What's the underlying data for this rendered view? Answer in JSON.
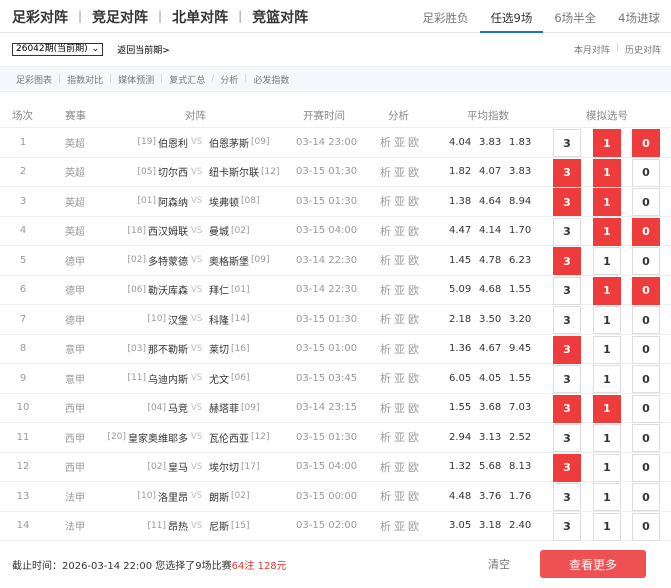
{
  "nav": {
    "brand_tabs": [
      "足彩对阵",
      "竞足对阵",
      "北单对阵",
      "竞篮对阵"
    ],
    "sub_tabs": [
      "足彩胜负",
      "任选9场",
      "6场半全",
      "4场进球"
    ],
    "active_sub_tab": "任选9场"
  },
  "toolbar": {
    "issue_select": "26042期(当前期)",
    "back_link": "返回当前期>",
    "month_link": "本月对阵",
    "history_link": "历史对阵"
  },
  "subnav": [
    "足彩图表",
    "指数对比",
    "媒体预测",
    "复式汇总",
    "分析",
    "必发指数"
  ],
  "table": {
    "headers": {
      "no": "场次",
      "league": "赛事",
      "match": "对阵",
      "time": "开赛时间",
      "analysis": "分析",
      "odds": "平均指数",
      "picks": "模拟选号"
    },
    "vs": "VS",
    "analysis_links": [
      "析",
      "亚",
      "欧"
    ],
    "pick_labels": [
      "3",
      "1",
      "0"
    ],
    "rows": [
      {
        "no": "1",
        "league": "英超",
        "home_rank": "[19]",
        "home": "伯恩利",
        "away": "伯恩茅斯",
        "away_rank": "[09]",
        "time": "03-14 23:00",
        "odds": [
          "4.04",
          "3.83",
          "1.83"
        ],
        "picks": [
          false,
          true,
          true
        ]
      },
      {
        "no": "2",
        "league": "英超",
        "home_rank": "[05]",
        "home": "切尔西",
        "away": "纽卡斯尔联",
        "away_rank": "[12]",
        "time": "03-15 01:30",
        "odds": [
          "1.82",
          "4.07",
          "3.83"
        ],
        "picks": [
          true,
          true,
          false
        ]
      },
      {
        "no": "3",
        "league": "英超",
        "home_rank": "[01]",
        "home": "阿森纳",
        "away": "埃弗顿",
        "away_rank": "[08]",
        "time": "03-15 01:30",
        "odds": [
          "1.38",
          "4.64",
          "8.94"
        ],
        "picks": [
          true,
          true,
          false
        ]
      },
      {
        "no": "4",
        "league": "英超",
        "home_rank": "[18]",
        "home": "西汉姆联",
        "away": "曼城",
        "away_rank": "[02]",
        "time": "03-15 04:00",
        "odds": [
          "4.47",
          "4.14",
          "1.70"
        ],
        "picks": [
          false,
          true,
          true
        ]
      },
      {
        "no": "5",
        "league": "德甲",
        "home_rank": "[02]",
        "home": "多特蒙德",
        "away": "奥格斯堡",
        "away_rank": "[09]",
        "time": "03-14 22:30",
        "odds": [
          "1.45",
          "4.78",
          "6.23"
        ],
        "picks": [
          true,
          false,
          false
        ]
      },
      {
        "no": "6",
        "league": "德甲",
        "home_rank": "[06]",
        "home": "勒沃库森",
        "away": "拜仁",
        "away_rank": "[01]",
        "time": "03-14 22:30",
        "odds": [
          "5.09",
          "4.68",
          "1.55"
        ],
        "picks": [
          false,
          true,
          true
        ]
      },
      {
        "no": "7",
        "league": "德甲",
        "home_rank": "[10]",
        "home": "汉堡",
        "away": "科隆",
        "away_rank": "[14]",
        "time": "03-15 01:30",
        "odds": [
          "2.18",
          "3.50",
          "3.20"
        ],
        "picks": [
          false,
          false,
          false
        ]
      },
      {
        "no": "8",
        "league": "意甲",
        "home_rank": "[03]",
        "home": "那不勒斯",
        "away": "莱切",
        "away_rank": "[16]",
        "time": "03-15 01:00",
        "odds": [
          "1.36",
          "4.67",
          "9.45"
        ],
        "picks": [
          true,
          false,
          false
        ]
      },
      {
        "no": "9",
        "league": "意甲",
        "home_rank": "[11]",
        "home": "乌迪内斯",
        "away": "尤文",
        "away_rank": "[06]",
        "time": "03-15 03:45",
        "odds": [
          "6.05",
          "4.05",
          "1.55"
        ],
        "picks": [
          false,
          false,
          false
        ]
      },
      {
        "no": "10",
        "league": "西甲",
        "home_rank": "[04]",
        "home": "马竞",
        "away": "赫塔菲",
        "away_rank": "[09]",
        "time": "03-14 23:15",
        "odds": [
          "1.55",
          "3.68",
          "7.03"
        ],
        "picks": [
          true,
          true,
          false
        ]
      },
      {
        "no": "11",
        "league": "西甲",
        "home_rank": "[20]",
        "home": "皇家奥维耶多",
        "away": "瓦伦西亚",
        "away_rank": "[12]",
        "time": "03-15 01:30",
        "odds": [
          "2.94",
          "3.13",
          "2.52"
        ],
        "picks": [
          false,
          false,
          false
        ]
      },
      {
        "no": "12",
        "league": "西甲",
        "home_rank": "[02]",
        "home": "皇马",
        "away": "埃尔切",
        "away_rank": "[17]",
        "time": "03-15 04:00",
        "odds": [
          "1.32",
          "5.68",
          "8.13"
        ],
        "picks": [
          true,
          false,
          false
        ]
      },
      {
        "no": "13",
        "league": "法甲",
        "home_rank": "[10]",
        "home": "洛里昂",
        "away": "朗斯",
        "away_rank": "[02]",
        "time": "03-15 00:00",
        "odds": [
          "4.48",
          "3.76",
          "1.76"
        ],
        "picks": [
          false,
          false,
          false
        ]
      },
      {
        "no": "14",
        "league": "法甲",
        "home_rank": "[11]",
        "home": "昂热",
        "away": "尼斯",
        "away_rank": "[15]",
        "time": "03-15 02:00",
        "odds": [
          "3.05",
          "3.18",
          "2.40"
        ],
        "picks": [
          false,
          false,
          false
        ]
      }
    ]
  },
  "footer": {
    "deadline": "截止时间：2026-03-14 22:00 您选择了9场比赛",
    "bets": "64注",
    "amount": "128元",
    "clear": "清空",
    "more": "查看更多"
  },
  "colors": {
    "accent": "#ee3b3b",
    "tab_underline": "#1a73c8"
  }
}
